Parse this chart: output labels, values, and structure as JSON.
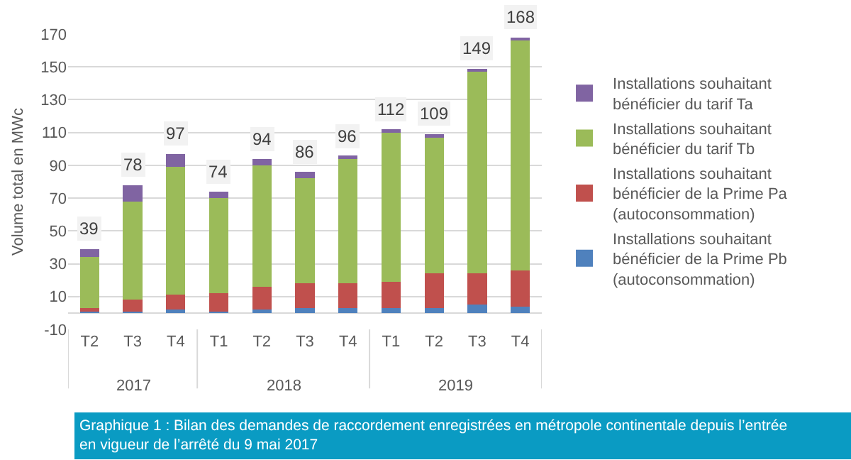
{
  "chart_data": {
    "type": "bar",
    "stacked": true,
    "ylabel": "Volume total en MWc",
    "categories": [
      "T2",
      "T3",
      "T4",
      "T1",
      "T2",
      "T3",
      "T4",
      "T1",
      "T2",
      "T3",
      "T4"
    ],
    "series": [
      {
        "name": "Installations souhaitant bénéficier de la Prime Pb (autoconsommation)",
        "color": "#4f81bd",
        "values": [
          1,
          1,
          2,
          1,
          2,
          3,
          3,
          3,
          3,
          5,
          4
        ]
      },
      {
        "name": "Installations souhaitant bénéficier de la Prime Pa (autoconsommation)",
        "color": "#c0504d",
        "values": [
          2,
          7,
          9,
          11,
          14,
          15,
          15,
          16,
          21,
          19,
          22
        ]
      },
      {
        "name": "Installations souhaitant bénéficier du tarif Tb",
        "color": "#9bbb59",
        "values": [
          31,
          60,
          78,
          58,
          74,
          64,
          76,
          91,
          83,
          123,
          140
        ]
      },
      {
        "name": "Installations souhaitant bénéficier du tarif Ta",
        "color": "#8064a2",
        "values": [
          5,
          10,
          8,
          4,
          4,
          4,
          2,
          2,
          2,
          2,
          2
        ]
      }
    ],
    "totals": [
      "39",
      "78",
      "97",
      "74",
      "94",
      "86",
      "96",
      "112",
      "109",
      "149",
      "168"
    ],
    "ylim": [
      -10,
      170
    ],
    "yticks": [
      -10,
      10,
      30,
      50,
      70,
      90,
      110,
      130,
      150,
      170
    ],
    "grid": "y",
    "legend": "right",
    "annotations": [
      "2017",
      "2018",
      "2019",
      "Graphique 1 : Bilan des demandes de raccordement enregistrées en métropole continentale depuis l’entrée en vigueur de l’arrêté du 9 mai 2017"
    ]
  }
}
